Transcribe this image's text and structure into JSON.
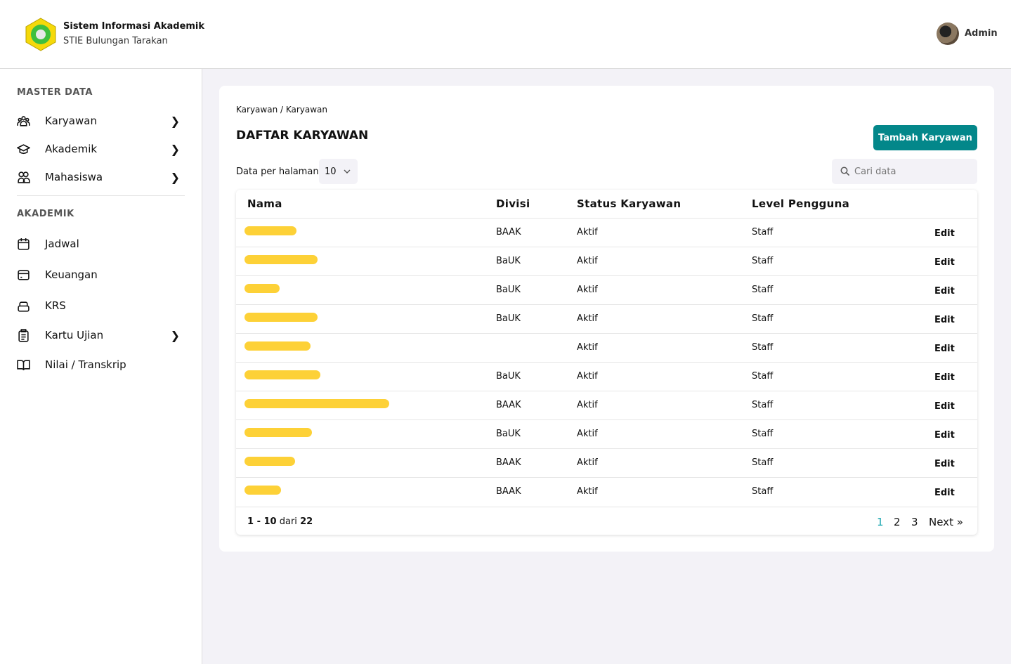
{
  "header": {
    "title": "Sistem Informasi Akademik",
    "subtitle": "STIE Bulungan Tarakan",
    "user": "Admin"
  },
  "sidebar": {
    "sections": [
      {
        "label": "MASTER DATA",
        "items": [
          {
            "label": "Karyawan",
            "icon": "users-icon",
            "chevron": true
          },
          {
            "label": "Akademik",
            "icon": "graduation-cap-icon",
            "chevron": true
          },
          {
            "label": "Mahasiswa",
            "icon": "user-group-icon",
            "chevron": true
          }
        ]
      },
      {
        "label": "AKADEMIK",
        "items": [
          {
            "label": "Jadwal",
            "icon": "calendar-icon",
            "chevron": false
          },
          {
            "label": "Keuangan",
            "icon": "credit-card-icon",
            "chevron": false
          },
          {
            "label": "KRS",
            "icon": "stack-icon",
            "chevron": false
          },
          {
            "label": "Kartu Ujian",
            "icon": "clipboard-icon",
            "chevron": true
          },
          {
            "label": "Nilai / Transkrip",
            "icon": "book-icon",
            "chevron": false
          }
        ]
      }
    ]
  },
  "main": {
    "breadcrumb": "Karyawan / Karyawan",
    "title": "DAFTAR KARYAWAN",
    "add_button": "Tambah Karyawan",
    "per_page_label": "Data per halaman",
    "per_page_value": "10",
    "search_placeholder": "Cari data",
    "columns": [
      "Nama",
      "Divisi",
      "Status Karyawan",
      "Level Pengguna"
    ],
    "rows": [
      {
        "divisi": "BAAK",
        "status": "Aktif",
        "level": "Staff",
        "action": "Edit"
      },
      {
        "divisi": "BaUK",
        "status": "Aktif",
        "level": "Staff",
        "action": "Edit"
      },
      {
        "divisi": "BaUK",
        "status": "Aktif",
        "level": "Staff",
        "action": "Edit"
      },
      {
        "divisi": "BaUK",
        "status": "Aktif",
        "level": "Staff",
        "action": "Edit"
      },
      {
        "divisi": "",
        "status": "Aktif",
        "level": "Staff",
        "action": "Edit"
      },
      {
        "divisi": "BaUK",
        "status": "Aktif",
        "level": "Staff",
        "action": "Edit"
      },
      {
        "divisi": "BAAK",
        "status": "Aktif",
        "level": "Staff",
        "action": "Edit"
      },
      {
        "divisi": "BaUK",
        "status": "Aktif",
        "level": "Staff",
        "action": "Edit"
      },
      {
        "divisi": "BAAK",
        "status": "Aktif",
        "level": "Staff",
        "action": "Edit"
      },
      {
        "divisi": "BAAK",
        "status": "Aktif",
        "level": "Staff",
        "action": "Edit"
      }
    ],
    "summary_range": "1 - 10",
    "summary_of": "dari",
    "summary_total": "22",
    "pages": [
      "1",
      "2",
      "3"
    ],
    "next": "Next »",
    "current_page": "1"
  },
  "colors": {
    "accent": "#03878a",
    "redaction": "#fdd137",
    "active_page": "#1aa7b0"
  }
}
